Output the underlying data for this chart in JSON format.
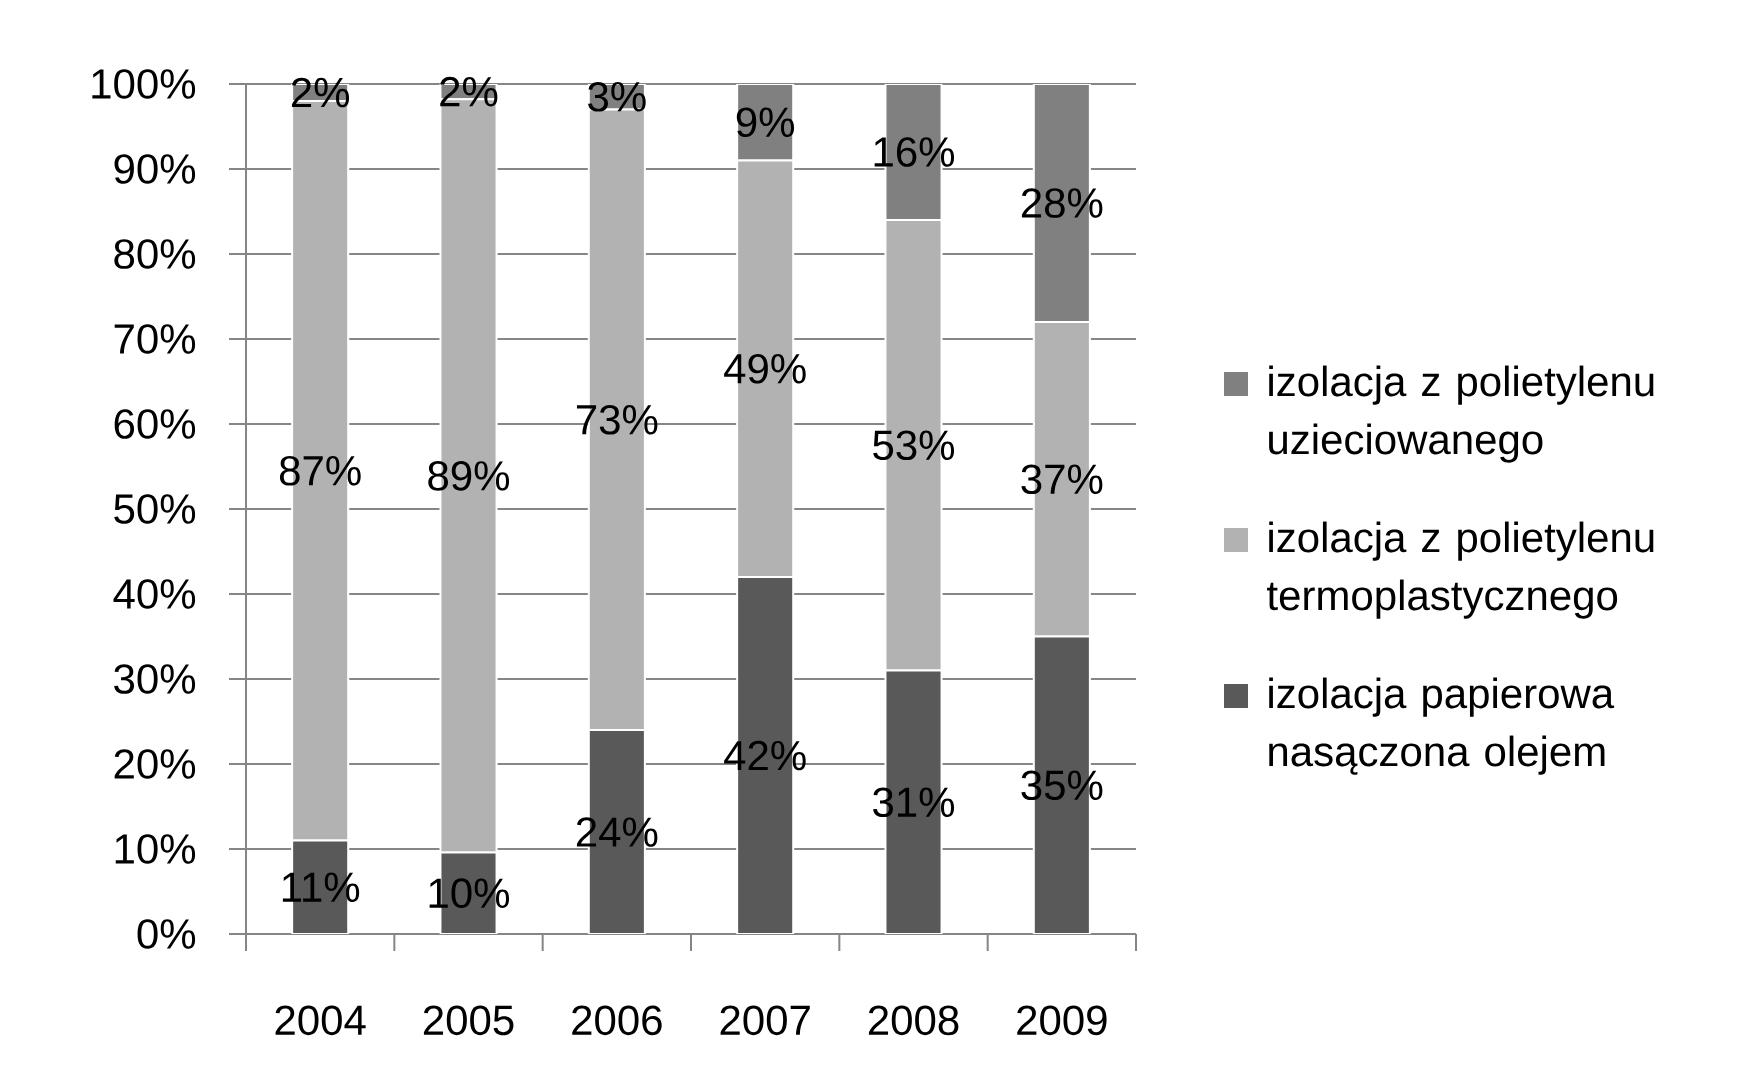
{
  "chart_data": {
    "type": "bar",
    "stacked": true,
    "categories": [
      "2004",
      "2005",
      "2006",
      "2007",
      "2008",
      "2009"
    ],
    "series": [
      {
        "name": "izolacja papierowa nasączona olejem",
        "color": "#595959",
        "values": [
          11,
          9.6,
          24,
          42,
          31,
          35
        ],
        "value_labels": [
          "11%",
          "10%",
          "24%",
          "42%",
          "31%",
          "35%"
        ]
      },
      {
        "name": "izolacja z polietylenu termoplastycznego",
        "color": "#b2b2b2",
        "values": [
          87,
          88.6,
          73,
          49,
          53,
          37
        ],
        "value_labels": [
          "87%",
          "89%",
          "73%",
          "49%",
          "53%",
          "37%"
        ]
      },
      {
        "name": "izolacja z polietylenu uzieciowanego",
        "color": "#808080",
        "values": [
          2,
          1.8,
          3,
          9,
          16,
          28
        ],
        "value_labels": [
          "2%",
          "2%",
          "3%",
          "9%",
          "16%",
          "28%"
        ]
      }
    ],
    "ylim": [
      0,
      100
    ],
    "yticks": [
      {
        "value": 0,
        "label": "0%"
      },
      {
        "value": 10,
        "label": "10%"
      },
      {
        "value": 20,
        "label": "20%"
      },
      {
        "value": 30,
        "label": "30%"
      },
      {
        "value": 40,
        "label": "40%"
      },
      {
        "value": 50,
        "label": "50%"
      },
      {
        "value": 60,
        "label": "60%"
      },
      {
        "value": 70,
        "label": "70%"
      },
      {
        "value": 80,
        "label": "80%"
      },
      {
        "value": 90,
        "label": "90%"
      },
      {
        "value": 100,
        "label": "100%"
      }
    ],
    "grid": "y",
    "legend": "right"
  }
}
